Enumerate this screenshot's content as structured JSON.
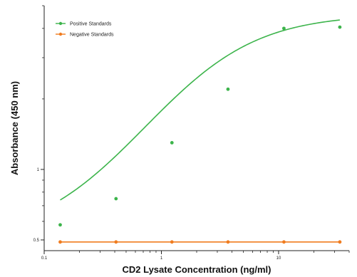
{
  "chart_data": {
    "type": "line",
    "xlabel": "CD2 Lysate Concentration (ng/ml)",
    "ylabel": "Absorbance (450 nm)",
    "xscale": "log",
    "yscale": "log",
    "xlim": [
      0.1,
      40
    ],
    "ylim": [
      0.45,
      5
    ],
    "x_ticks": [
      {
        "value": 0.1,
        "label": "0.1"
      },
      {
        "value": 1,
        "label": "1"
      },
      {
        "value": 10,
        "label": "10"
      }
    ],
    "y_ticks": [
      {
        "value": 0.5,
        "label": "0.5"
      },
      {
        "value": 1,
        "label": "1"
      }
    ],
    "grid": false,
    "legend_position": "top-left",
    "series": [
      {
        "name": "Positive Standards",
        "color": "#3cb44b",
        "marker": "circle",
        "x": [
          0.137,
          0.41,
          1.23,
          3.7,
          11.1,
          33.3
        ],
        "y": [
          0.58,
          0.75,
          1.3,
          2.2,
          4.0,
          4.05
        ],
        "fit_curve": {
          "model": "4PL",
          "bottom": 0.5,
          "top": 4.6,
          "ec50": 2.2,
          "hill": 1.0
        }
      },
      {
        "name": "Negative Standards",
        "color": "#f07c1f",
        "marker": "circle",
        "x": [
          0.137,
          0.41,
          1.23,
          3.7,
          11.1,
          33.3
        ],
        "y": [
          0.49,
          0.49,
          0.49,
          0.49,
          0.49,
          0.49
        ]
      }
    ]
  }
}
